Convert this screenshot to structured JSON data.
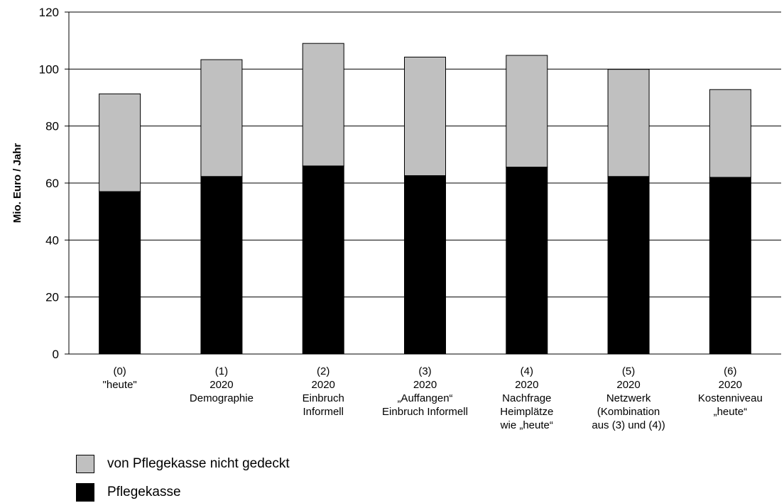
{
  "chart_data": {
    "type": "bar",
    "stacked": true,
    "ylabel": "Mio. Euro / Jahr",
    "ylim": [
      0,
      120
    ],
    "yticks": [
      0,
      20,
      40,
      60,
      80,
      100,
      120
    ],
    "grid": true,
    "legend_position": "bottom-left",
    "categories": [
      [
        "(0)",
        "\"heute\""
      ],
      [
        "(1)",
        "2020",
        "Demographie"
      ],
      [
        "(2)",
        "2020",
        "Einbruch",
        "Informell"
      ],
      [
        "(3)",
        "2020",
        "„Auffangen“",
        "Einbruch Informell"
      ],
      [
        "(4)",
        "2020",
        "Nachfrage",
        "Heimplätze",
        "wie „heute“"
      ],
      [
        "(5)",
        "2020",
        "Netzwerk",
        "(Kombination",
        "aus (3) und (4))"
      ],
      [
        "(6)",
        "2020",
        "Kostenniveau",
        "„heute“"
      ]
    ],
    "series": [
      {
        "name": "Pflegekasse",
        "color": "#000000",
        "values": [
          57,
          62.3,
          66,
          62.6,
          65.6,
          62.3,
          62
        ]
      },
      {
        "name": "von Pflegekasse nicht gedeckt",
        "color": "#c0c0c0",
        "values": [
          34.3,
          41,
          43,
          41.6,
          39.2,
          37.6,
          30.8
        ]
      }
    ]
  },
  "legend": [
    {
      "label": "von Pflegekasse nicht gedeckt",
      "color": "#c0c0c0"
    },
    {
      "label": "Pflegekasse",
      "color": "#000000"
    }
  ]
}
